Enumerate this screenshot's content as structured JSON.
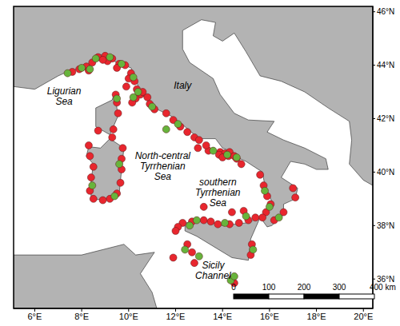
{
  "chart_data": {
    "type": "scatter",
    "xlim": [
      5.1,
      20.4
    ],
    "ylim": [
      34.9,
      46.2
    ],
    "xticks": [
      {
        "value": 6,
        "label": "6°E"
      },
      {
        "value": 8,
        "label": "8°E"
      },
      {
        "value": 10,
        "label": "10°E"
      },
      {
        "value": 12,
        "label": "12°E"
      },
      {
        "value": 14,
        "label": "14°E"
      },
      {
        "value": 16,
        "label": "16°E"
      },
      {
        "value": 18,
        "label": "18°E"
      },
      {
        "value": 20,
        "label": "20°E"
      }
    ],
    "yticks": [
      {
        "value": 36,
        "label": "36°N"
      },
      {
        "value": 38,
        "label": "38°N"
      },
      {
        "value": 40,
        "label": "40°N"
      },
      {
        "value": 42,
        "label": "42°N"
      },
      {
        "value": 44,
        "label": "44°N"
      },
      {
        "value": 46,
        "label": "46°N"
      }
    ],
    "grid": false,
    "series": [
      {
        "color": "#e8262e",
        "marker": "circle",
        "x": [
          7.6,
          7.9,
          8.2,
          8.45,
          8.7,
          9.0,
          9.3,
          9.6,
          9.85,
          8.3,
          9.1,
          8.9,
          9.5,
          10.1,
          10.25,
          10.35,
          10.5,
          10.3,
          10.15,
          10.9,
          11.1,
          10.6,
          9.9,
          10.0,
          10.8,
          9.45,
          9.5,
          9.55,
          9.35,
          8.7,
          11.6,
          11.9,
          12.2,
          12.8,
          13.0,
          12.5,
          12.95,
          13.4,
          13.9,
          14.1,
          14.25,
          14.3,
          14.5,
          14.6,
          14.8,
          13.85,
          14.0,
          13.3,
          9.75,
          9.7,
          9.7,
          9.65,
          9.5,
          9.2,
          8.9,
          8.5,
          8.35,
          8.4,
          8.5,
          8.35,
          9.3,
          8.3,
          15.6,
          15.75,
          15.9,
          16.05,
          15.85,
          15.7,
          16.2,
          16.6,
          17.1,
          17.0,
          12.3,
          12.7,
          13.2,
          13.5,
          13.8,
          14.3,
          14.7,
          15.1,
          15.4,
          14.9,
          14.4,
          13.2,
          12.1,
          12.0,
          12.5,
          12.7,
          11.9,
          12.8,
          14.4,
          14.5,
          15.2,
          15.25
        ],
        "y": [
          43.75,
          43.85,
          43.95,
          44.1,
          44.3,
          44.35,
          44.25,
          44.05,
          44.0,
          43.8,
          44.15,
          44.2,
          43.9,
          43.7,
          43.4,
          43.1,
          42.9,
          42.75,
          42.6,
          42.55,
          42.35,
          43.0,
          43.2,
          43.5,
          42.8,
          42.9,
          42.6,
          42.2,
          41.6,
          41.55,
          42.2,
          41.95,
          41.7,
          41.3,
          41.2,
          41.5,
          40.9,
          40.8,
          40.75,
          40.7,
          40.6,
          40.75,
          40.6,
          40.5,
          40.3,
          40.65,
          40.55,
          41.0,
          40.9,
          40.5,
          40.1,
          39.6,
          39.2,
          39.0,
          38.95,
          39.0,
          39.3,
          39.8,
          40.2,
          40.6,
          41.3,
          41.0,
          39.9,
          39.5,
          39.1,
          38.8,
          38.5,
          38.3,
          38.2,
          38.5,
          39.05,
          39.4,
          38.1,
          38.15,
          38.2,
          38.15,
          38.05,
          38.05,
          38.1,
          38.2,
          38.3,
          38.55,
          38.5,
          38.7,
          37.95,
          37.8,
          37.3,
          37.0,
          36.8,
          36.6,
          36.0,
          35.85,
          36.9,
          37.3
        ]
      },
      {
        "color": "#67b43c",
        "marker": "circle",
        "x": [
          7.4,
          8.0,
          8.6,
          9.2,
          9.7,
          8.35,
          10.2,
          10.4,
          10.2,
          11.0,
          9.5,
          12.1,
          13.6,
          14.2,
          14.6,
          9.6,
          9.4,
          8.45,
          15.8,
          16.0,
          16.4,
          12.9,
          14.1,
          15.0,
          12.6,
          12.4,
          13.0,
          14.35,
          14.5,
          15.3,
          11.6
        ],
        "y": [
          43.7,
          43.9,
          44.25,
          44.3,
          44.05,
          43.85,
          43.55,
          43.0,
          42.8,
          42.45,
          42.75,
          41.8,
          40.8,
          40.65,
          40.55,
          40.3,
          39.1,
          39.5,
          39.3,
          38.7,
          38.3,
          38.2,
          38.1,
          38.35,
          38.0,
          37.1,
          36.85,
          35.95,
          36.1,
          37.1,
          41.6
        ]
      }
    ],
    "annotations": [
      {
        "lines": [
          "Ligurian",
          "Sea"
        ],
        "x": 7.25,
        "y": 42.8
      },
      {
        "lines": [
          "Italy"
        ],
        "x": 12.3,
        "y": 43.2
      },
      {
        "lines": [
          "North-central",
          "Tyrrhenian",
          "Sea"
        ],
        "x": 11.45,
        "y": 40.2
      },
      {
        "lines": [
          "southern",
          "Tyrrhenian",
          "Sea"
        ],
        "x": 13.8,
        "y": 39.2
      },
      {
        "lines": [
          "Sicily",
          "Channel"
        ],
        "x": 13.6,
        "y": 36.3
      }
    ],
    "scale_bar": [
      "0",
      "100",
      "200",
      "300",
      "400 km"
    ],
    "land": [
      [
        [
          5.1,
          43.2
        ],
        [
          6,
          43.1
        ],
        [
          7,
          43.6
        ],
        [
          7.5,
          43.8
        ],
        [
          8.2,
          43.9
        ],
        [
          8.8,
          44.4
        ],
        [
          9.5,
          44.1
        ],
        [
          10.1,
          43.9
        ],
        [
          10.3,
          43.5
        ],
        [
          10.5,
          42.95
        ],
        [
          11.1,
          42.4
        ],
        [
          11.8,
          42.1
        ],
        [
          12.4,
          41.7
        ],
        [
          13.0,
          41.25
        ],
        [
          13.7,
          41.25
        ],
        [
          14.0,
          40.9
        ],
        [
          14.3,
          40.8
        ],
        [
          14.5,
          40.6
        ],
        [
          15.0,
          40.4
        ],
        [
          15.7,
          40.0
        ],
        [
          15.8,
          39.5
        ],
        [
          16.1,
          38.9
        ],
        [
          15.65,
          38.25
        ],
        [
          15.9,
          37.95
        ],
        [
          16.1,
          38.0
        ],
        [
          16.6,
          38.4
        ],
        [
          16.6,
          38.8
        ],
        [
          17.1,
          39.0
        ],
        [
          17.2,
          39.4
        ],
        [
          16.5,
          39.8
        ],
        [
          16.9,
          40.4
        ],
        [
          17.5,
          40.3
        ],
        [
          18.0,
          40.1
        ],
        [
          18.5,
          40.1
        ],
        [
          18.4,
          40.5
        ],
        [
          17.5,
          40.9
        ],
        [
          16.6,
          41.2
        ],
        [
          15.9,
          41.5
        ],
        [
          16.2,
          41.9
        ],
        [
          15.1,
          41.95
        ],
        [
          14.5,
          42.2
        ],
        [
          13.9,
          42.9
        ],
        [
          13.6,
          43.5
        ],
        [
          12.6,
          44.1
        ],
        [
          12.3,
          44.6
        ],
        [
          12.3,
          45.3
        ],
        [
          13.1,
          45.7
        ],
        [
          13.7,
          45.6
        ],
        [
          13.6,
          45.1
        ],
        [
          14.0,
          44.9
        ],
        [
          14.5,
          45.2
        ],
        [
          15.0,
          44.5
        ],
        [
          15.6,
          43.6
        ],
        [
          16.5,
          43.4
        ],
        [
          17.5,
          43.0
        ],
        [
          18.5,
          42.4
        ],
        [
          19.4,
          41.9
        ],
        [
          19.5,
          41.2
        ],
        [
          19.4,
          40.3
        ],
        [
          20.0,
          39.7
        ],
        [
          20.4,
          39.5
        ],
        [
          20.4,
          46.2
        ],
        [
          5.1,
          46.2
        ]
      ],
      [
        [
          9.4,
          43.0
        ],
        [
          9.55,
          42.1
        ],
        [
          9.2,
          41.4
        ],
        [
          8.6,
          41.7
        ],
        [
          8.6,
          42.4
        ],
        [
          9.3,
          42.7
        ]
      ],
      [
        [
          9.2,
          41.25
        ],
        [
          9.8,
          40.9
        ],
        [
          9.7,
          40.1
        ],
        [
          9.6,
          39.2
        ],
        [
          9.0,
          39.0
        ],
        [
          8.4,
          38.95
        ],
        [
          8.4,
          39.7
        ],
        [
          8.5,
          40.3
        ],
        [
          8.2,
          40.6
        ],
        [
          8.3,
          40.95
        ],
        [
          8.8,
          40.9
        ]
      ],
      [
        [
          12.4,
          38.1
        ],
        [
          13.3,
          38.2
        ],
        [
          14.0,
          38.0
        ],
        [
          15.0,
          38.1
        ],
        [
          15.6,
          38.3
        ],
        [
          15.2,
          37.5
        ],
        [
          15.1,
          36.7
        ],
        [
          14.4,
          36.8
        ],
        [
          12.9,
          37.6
        ],
        [
          12.4,
          37.8
        ]
      ],
      [
        [
          5.1,
          34.9
        ],
        [
          5.1,
          36.9
        ],
        [
          8,
          36.9
        ],
        [
          9.8,
          37.3
        ],
        [
          10.3,
          36.9
        ],
        [
          11.1,
          37.0
        ],
        [
          10.5,
          36.2
        ],
        [
          11.0,
          35.5
        ],
        [
          11.2,
          34.9
        ]
      ]
    ]
  }
}
